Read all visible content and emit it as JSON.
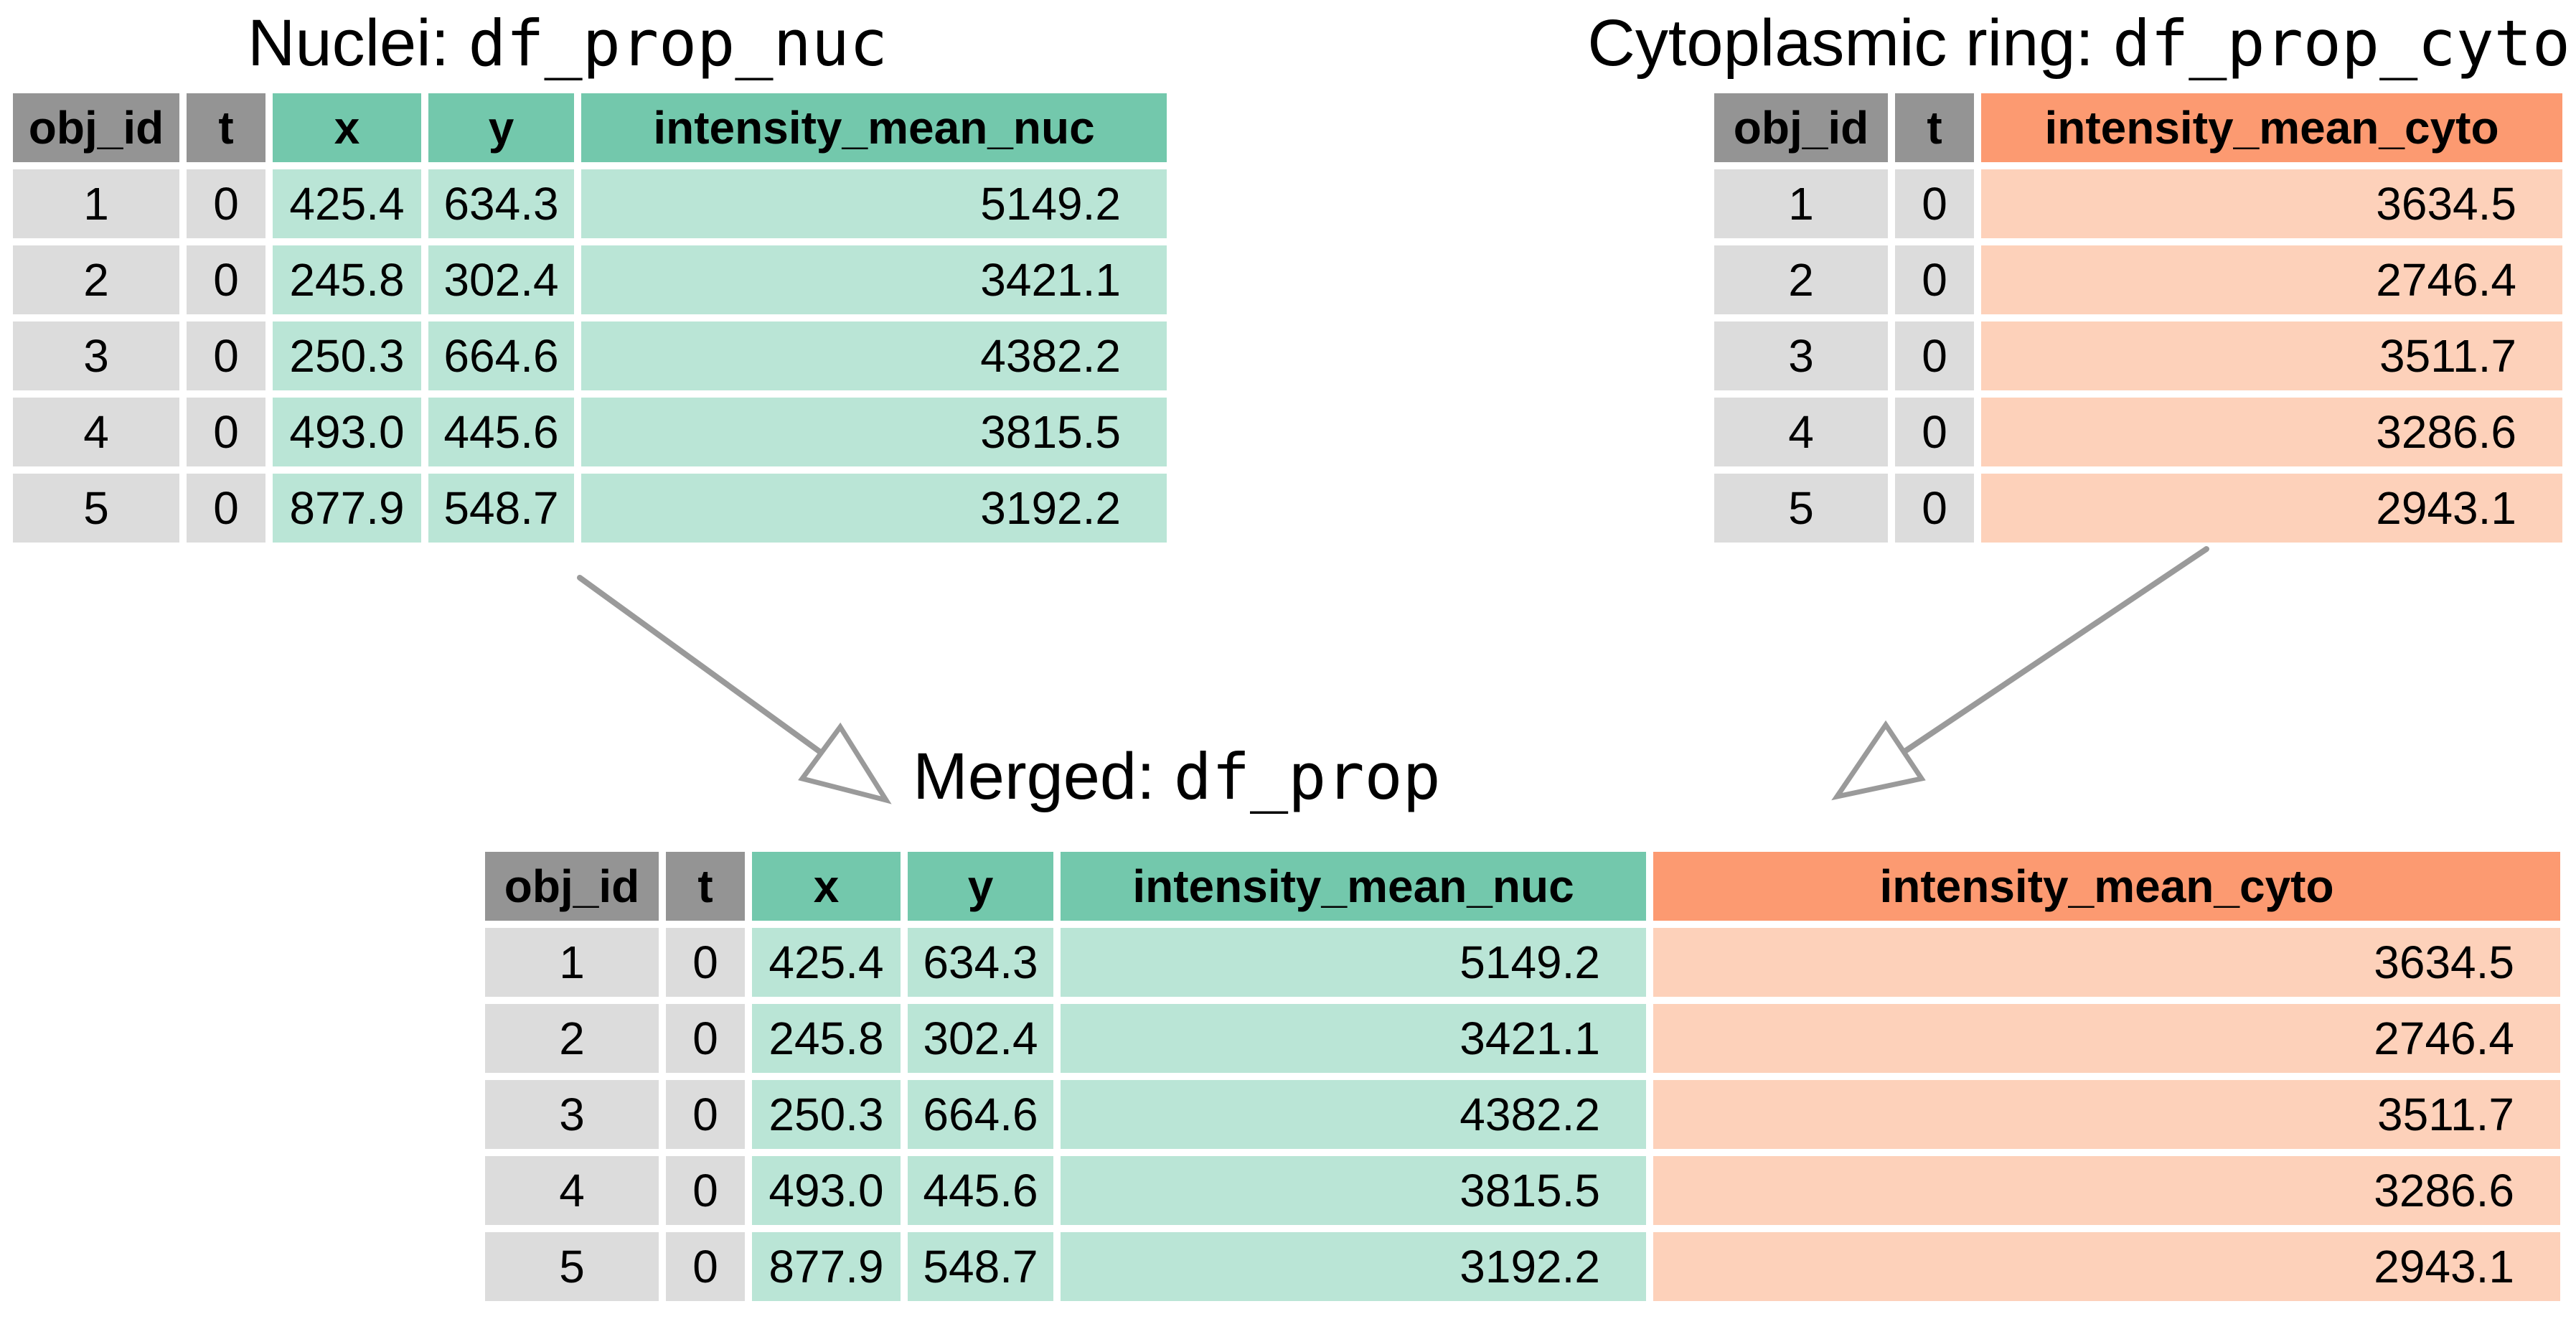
{
  "diagram": {
    "colors": {
      "header_gray": "#949494",
      "cell_gray": "#dcdcdc",
      "header_teal": "#73c8ac",
      "cell_teal": "#bae5d6",
      "header_orange": "#fc9a71",
      "cell_orange": "#fdd1ba",
      "arrow_gray": "#9a9a9a",
      "text": "#000000",
      "background": "#ffffff"
    },
    "titles": {
      "nuclei": {
        "plain": "Nuclei:",
        "code": "df_prop_nuc"
      },
      "cyto": {
        "plain": "Cytoplasmic ring:",
        "code": "df_prop_cyto"
      },
      "merged": {
        "plain": "Merged:",
        "code": "df_prop"
      }
    },
    "tables": {
      "nuclei": {
        "columns": [
          {
            "label": "obj_id",
            "tint": "gray",
            "align": "center"
          },
          {
            "label": "t",
            "tint": "gray",
            "align": "center"
          },
          {
            "label": "x",
            "tint": "teal",
            "align": "center"
          },
          {
            "label": "y",
            "tint": "teal",
            "align": "center"
          },
          {
            "label": "intensity_mean_nuc",
            "tint": "teal",
            "align": "right"
          }
        ],
        "rows": [
          [
            "1",
            "0",
            "425.4",
            "634.3",
            "5149.2"
          ],
          [
            "2",
            "0",
            "245.8",
            "302.4",
            "3421.1"
          ],
          [
            "3",
            "0",
            "250.3",
            "664.6",
            "4382.2"
          ],
          [
            "4",
            "0",
            "493.0",
            "445.6",
            "3815.5"
          ],
          [
            "5",
            "0",
            "877.9",
            "548.7",
            "3192.2"
          ]
        ]
      },
      "cyto": {
        "columns": [
          {
            "label": "obj_id",
            "tint": "gray",
            "align": "center"
          },
          {
            "label": "t",
            "tint": "gray",
            "align": "center"
          },
          {
            "label": "intensity_mean_cyto",
            "tint": "orange",
            "align": "right"
          }
        ],
        "rows": [
          [
            "1",
            "0",
            "3634.5"
          ],
          [
            "2",
            "0",
            "2746.4"
          ],
          [
            "3",
            "0",
            "3511.7"
          ],
          [
            "4",
            "0",
            "3286.6"
          ],
          [
            "5",
            "0",
            "2943.1"
          ]
        ]
      },
      "merged": {
        "columns": [
          {
            "label": "obj_id",
            "tint": "gray",
            "align": "center"
          },
          {
            "label": "t",
            "tint": "gray",
            "align": "center"
          },
          {
            "label": "x",
            "tint": "teal",
            "align": "center"
          },
          {
            "label": "y",
            "tint": "teal",
            "align": "center"
          },
          {
            "label": "intensity_mean_nuc",
            "tint": "teal",
            "align": "right"
          },
          {
            "label": "intensity_mean_cyto",
            "tint": "orange",
            "align": "right"
          }
        ],
        "rows": [
          [
            "1",
            "0",
            "425.4",
            "634.3",
            "5149.2",
            "3634.5"
          ],
          [
            "2",
            "0",
            "245.8",
            "302.4",
            "3421.1",
            "2746.4"
          ],
          [
            "3",
            "0",
            "250.3",
            "664.6",
            "4382.2",
            "3511.7"
          ],
          [
            "4",
            "0",
            "493.0",
            "445.6",
            "3815.5",
            "3286.6"
          ],
          [
            "5",
            "0",
            "877.9",
            "548.7",
            "3192.2",
            "2943.1"
          ]
        ]
      }
    },
    "arrows": [
      {
        "name": "nuclei-to-merged",
        "direction": "down-right"
      },
      {
        "name": "cyto-to-merged",
        "direction": "down-left"
      }
    ]
  }
}
